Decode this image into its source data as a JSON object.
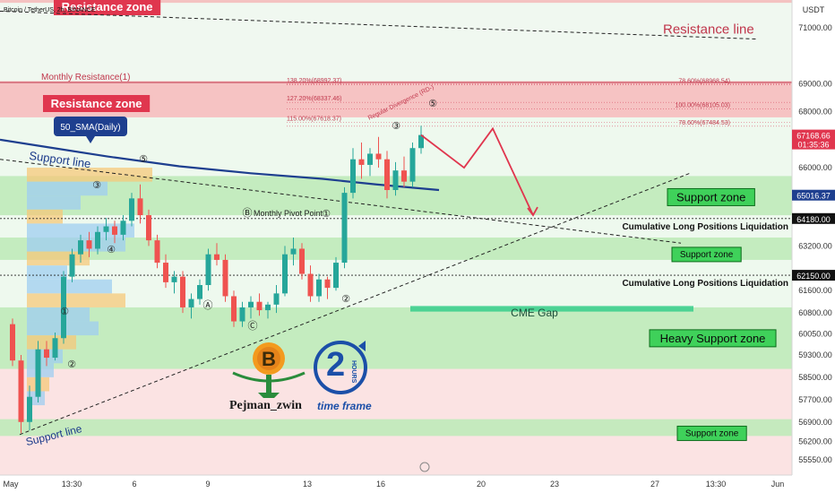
{
  "header": {
    "symbol_title": "Bitcoin / TetherUS, 2h, BINANCE",
    "currency": "USDT"
  },
  "chart_data": {
    "type": "candlestick",
    "title": "Bitcoin / TetherUS, 2h, BINANCE",
    "ylabel": "USDT",
    "ylim": [
      55000,
      72000
    ],
    "y_ticks": [
      71000,
      69000,
      68000,
      66000,
      63200,
      61600,
      60800,
      60050,
      59300,
      58500,
      57700,
      56900,
      56200,
      55550
    ],
    "x_ticks": [
      "May",
      "13:30",
      "6",
      "9",
      "13",
      "16",
      "20",
      "23",
      "27",
      "13:30",
      "Jun"
    ],
    "price_labels": [
      {
        "text": "67168.66",
        "sub": "01:35:36",
        "value": 67168.66,
        "color": "#e0364e"
      },
      {
        "text": "65016.37",
        "value": 65016.37,
        "color": "#1e3f8f"
      },
      {
        "text": "64180.00",
        "value": 64180.0,
        "color": "#111111"
      },
      {
        "text": "62150.00",
        "value": 62150.0,
        "color": "#111111"
      }
    ],
    "zones": [
      {
        "label": "Resistance zone",
        "top": 72000,
        "bottom": 71900,
        "kind": "resistance"
      },
      {
        "label": "Resistance zone",
        "top": 69100,
        "bottom": 67800,
        "kind": "resistance"
      },
      {
        "label": "Support zone",
        "top": 65700,
        "bottom": 64300,
        "kind": "support"
      },
      {
        "label": "Support zone",
        "top": 63500,
        "bottom": 62700,
        "kind": "support"
      },
      {
        "label": "Heavy Support zone",
        "top": 61000,
        "bottom": 58800,
        "kind": "support"
      },
      {
        "label": "Support zone",
        "top": 57000,
        "bottom": 56400,
        "kind": "support"
      },
      {
        "label": "CME Gap",
        "top": 61050,
        "bottom": 60850,
        "kind": "gap"
      }
    ],
    "horizontal_levels": [
      {
        "label": "Monthly Resistance(1)",
        "value": 69050
      },
      {
        "label": "Monthly Pivot Point",
        "value": 64180
      },
      {
        "label": "Cumulative Long Positions Liquidation",
        "value": 64180
      },
      {
        "label": "Cumulative Long Positions Liquidation",
        "value": 62150
      }
    ],
    "fib_levels": [
      {
        "text": "138.20%(68992.37)",
        "value": 68992
      },
      {
        "text": "127.20%(68337.46)",
        "value": 68337
      },
      {
        "text": "115.00%(67618.37)",
        "value": 67618
      },
      {
        "text": "78.60%(68968.54)",
        "value": 68968
      },
      {
        "text": "100.00%(68105.03)",
        "value": 68105
      },
      {
        "text": "78.60%(67484.53)",
        "value": 67484
      }
    ],
    "annotations": {
      "sma_label": "50_SMA(Daily)",
      "resistance_line": "Resistance line",
      "support_line_1": "Support line",
      "support_line_2": "Support line",
      "divergence": "Regular Divergence (RD-)",
      "wave_labels": [
        "①",
        "②",
        "③",
        "④",
        "⑤",
        "Ⓐ",
        "Ⓑ",
        "Ⓒ",
        "①",
        "②",
        "③",
        "⑤"
      ]
    },
    "projection": [
      67168,
      66000,
      67400,
      64300
    ],
    "candles": [
      [
        60400,
        60600,
        58900,
        59100
      ],
      [
        59100,
        59300,
        56500,
        56900
      ],
      [
        56900,
        58200,
        56600,
        57800
      ],
      [
        57800,
        59800,
        57600,
        59500
      ],
      [
        59500,
        59800,
        58900,
        59200
      ],
      [
        59200,
        60100,
        59100,
        59900
      ],
      [
        59900,
        62300,
        59700,
        62100
      ],
      [
        62100,
        63100,
        61900,
        62900
      ],
      [
        62900,
        63600,
        62600,
        63400
      ],
      [
        63400,
        63700,
        62800,
        63100
      ],
      [
        63100,
        63900,
        62900,
        63700
      ],
      [
        63700,
        64200,
        63400,
        63900
      ],
      [
        63900,
        64100,
        63300,
        63600
      ],
      [
        63600,
        64300,
        63400,
        64100
      ],
      [
        64100,
        65100,
        63900,
        64900
      ],
      [
        64900,
        65400,
        64000,
        64300
      ],
      [
        64300,
        64500,
        63200,
        63400
      ],
      [
        63400,
        63600,
        62400,
        62600
      ],
      [
        62600,
        62900,
        61700,
        61900
      ],
      [
        61900,
        62300,
        61500,
        62100
      ],
      [
        62100,
        62300,
        60800,
        61000
      ],
      [
        61000,
        61500,
        60600,
        61300
      ],
      [
        61300,
        62000,
        61100,
        61800
      ],
      [
        61800,
        63100,
        61600,
        62900
      ],
      [
        62900,
        63300,
        62500,
        62700
      ],
      [
        62700,
        62900,
        61200,
        61400
      ],
      [
        61400,
        61600,
        60300,
        60500
      ],
      [
        60500,
        61200,
        60300,
        61000
      ],
      [
        61000,
        61400,
        60600,
        61200
      ],
      [
        61200,
        61500,
        60700,
        60900
      ],
      [
        60900,
        61200,
        60600,
        61100
      ],
      [
        61100,
        61800,
        60800,
        61500
      ],
      [
        61500,
        63200,
        61400,
        62900
      ],
      [
        62900,
        63500,
        62500,
        63100
      ],
      [
        63100,
        63300,
        62000,
        62200
      ],
      [
        62200,
        62500,
        61200,
        61400
      ],
      [
        61400,
        62200,
        61200,
        62000
      ],
      [
        62000,
        62100,
        61300,
        61700
      ],
      [
        61700,
        62800,
        61600,
        62600
      ],
      [
        62600,
        65300,
        62400,
        65100
      ],
      [
        65100,
        66700,
        64900,
        66300
      ],
      [
        66300,
        66900,
        65600,
        66100
      ],
      [
        66100,
        66700,
        65700,
        66500
      ],
      [
        66500,
        67100,
        66000,
        66300
      ],
      [
        66300,
        66600,
        64900,
        65200
      ],
      [
        65200,
        66200,
        65000,
        65900
      ],
      [
        65900,
        66400,
        65300,
        65500
      ],
      [
        65500,
        66900,
        65300,
        66700
      ],
      [
        66700,
        67500,
        66500,
        67168
      ]
    ]
  },
  "branding": {
    "author": "Pejman_zwin",
    "logo_number": "2",
    "logo_word": "HOURS",
    "logo_caption": "time frame"
  }
}
